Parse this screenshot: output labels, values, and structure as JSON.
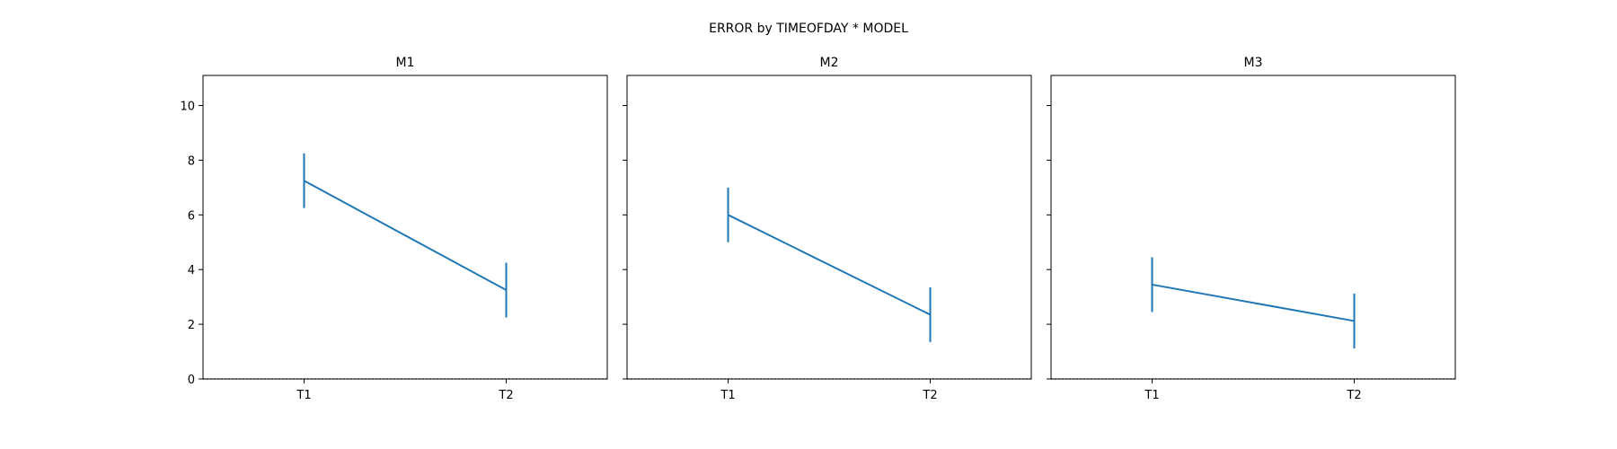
{
  "title": "ERROR by TIMEOFDAY * MODEL",
  "colors": {
    "series": "#1f77b4",
    "axis": "#000000",
    "background": "#ffffff"
  },
  "chart_data": [
    {
      "type": "line",
      "title": "M1",
      "categories": [
        "T1",
        "T2"
      ],
      "values": [
        7.25,
        3.25
      ],
      "error": [
        1.0,
        1.0
      ],
      "ylim": [
        0,
        11.1
      ],
      "yticks": [
        0,
        2,
        4,
        6,
        8,
        10
      ],
      "ytick_labels": [
        "0",
        "2",
        "4",
        "6",
        "8",
        "10"
      ],
      "reference_line": 0
    },
    {
      "type": "line",
      "title": "M2",
      "categories": [
        "T1",
        "T2"
      ],
      "values": [
        6.0,
        2.35
      ],
      "error": [
        1.0,
        1.0
      ],
      "ylim": [
        0,
        11.1
      ],
      "yticks": [
        0,
        2,
        4,
        6,
        8,
        10
      ],
      "reference_line": 0
    },
    {
      "type": "line",
      "title": "M3",
      "categories": [
        "T1",
        "T2"
      ],
      "values": [
        3.45,
        2.12
      ],
      "error": [
        1.0,
        1.0
      ],
      "ylim": [
        0,
        11.1
      ],
      "yticks": [
        0,
        2,
        4,
        6,
        8,
        10
      ],
      "reference_line": 0
    }
  ]
}
